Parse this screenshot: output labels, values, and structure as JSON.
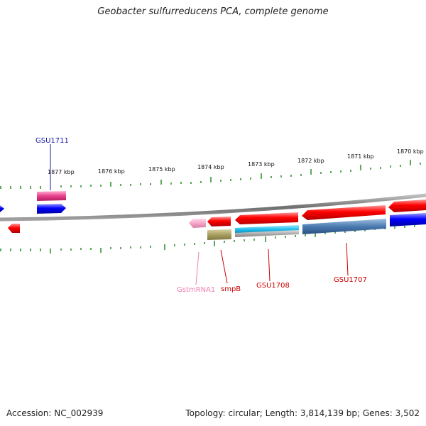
{
  "title": "Geobacter sulfurreducens PCA, complete genome",
  "footer": {
    "accession": "Accession: NC_002939",
    "topology": "Topology: circular; Length: 3,814,139 bp; Genes: 3,502"
  },
  "scale": {
    "unit": "kbp",
    "ticks": [
      "1877 kbp",
      "1876 kbp",
      "1875 kbp",
      "1874 kbp",
      "1873 kbp",
      "1872 kbp",
      "1871 kbp",
      "1870 kbp"
    ]
  },
  "labels": {
    "gsu1711": "GSU1711",
    "gstmrna1": "GstmRNA1",
    "smpb": "smpB",
    "gsu1708": "GSU1708",
    "gsu1707": "GSU1707"
  },
  "colors": {
    "backbone": "#808080",
    "cds_plus": "#0000ff",
    "cds_minus": "#ff0000",
    "pseudo": "#e8408c",
    "rna": "#f4a6c8",
    "domain_olive": "#a8a060",
    "domain_cyan": "#22c0ee",
    "domain_steel": "#4a7ab0",
    "tick": "#2a8a2a",
    "label_blue": "#1a1aa0",
    "label_red": "#cc0000",
    "label_pink": "#f080b0"
  }
}
